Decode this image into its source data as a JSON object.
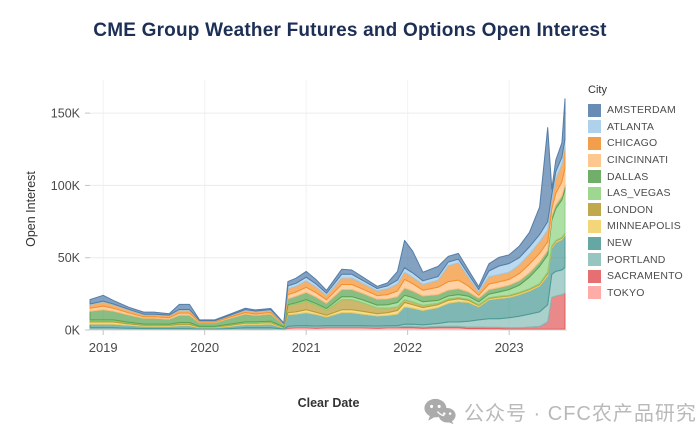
{
  "title": "CME Group Weather Futures and Options Open Interest",
  "watermark": {
    "icon": "wechat-icon",
    "text": "公众号 · CFC农产品研究"
  },
  "chart_data": {
    "type": "area",
    "stacked": true,
    "title": "CME Group Weather Futures and Options Open Interest",
    "xlabel": "Clear Date",
    "ylabel": "Open Interest",
    "legend_title": "City",
    "legend_position": "right",
    "units": "thousands of contracts (K)",
    "grid": "light horizontal and vertical gridlines",
    "stack_order": "legend order top-to-bottom equals stack top-to-bottom (AMSTERDAM on top, TOKYO at bottom)",
    "xlim": [
      2018.87,
      2023.57
    ],
    "ylim": [
      0,
      166
    ],
    "x_ticks": [
      2019,
      2020,
      2021,
      2022,
      2023
    ],
    "y_tick_values": [
      0,
      50,
      100,
      150
    ],
    "y_tick_labels": [
      "0K",
      "50K",
      "100K",
      "150K"
    ],
    "x": [
      2018.87,
      2019.0,
      2019.1,
      2019.25,
      2019.4,
      2019.5,
      2019.65,
      2019.75,
      2019.85,
      2019.95,
      2020.1,
      2020.25,
      2020.4,
      2020.5,
      2020.65,
      2020.78,
      2020.82,
      2020.9,
      2021.0,
      2021.1,
      2021.2,
      2021.35,
      2021.45,
      2021.55,
      2021.7,
      2021.8,
      2021.9,
      2021.97,
      2022.05,
      2022.15,
      2022.3,
      2022.4,
      2022.5,
      2022.6,
      2022.7,
      2022.8,
      2022.9,
      2023.0,
      2023.1,
      2023.2,
      2023.3,
      2023.38,
      2023.42,
      2023.46,
      2023.52,
      2023.55
    ],
    "series": [
      {
        "name": "AMSTERDAM",
        "color": "#4E79A7",
        "values": [
          3,
          4,
          2.5,
          1.5,
          1.5,
          1.5,
          1,
          3.5,
          3.5,
          0.5,
          0.5,
          0.8,
          1,
          0.8,
          0.8,
          0.3,
          3,
          3.5,
          4,
          3,
          2,
          3.5,
          3,
          2.5,
          1.5,
          2,
          6,
          19,
          15,
          6,
          7,
          4,
          4,
          3,
          2,
          5,
          6,
          6,
          8,
          10,
          19,
          65,
          4,
          8,
          10,
          28
        ]
      },
      {
        "name": "ATLANTA",
        "color": "#A0CBE8",
        "values": [
          0.5,
          0.5,
          0.5,
          0.4,
          0.3,
          0.3,
          0.3,
          0.5,
          0.5,
          0.2,
          0.2,
          0.3,
          0.5,
          0.5,
          0.5,
          0.2,
          2,
          2,
          2.5,
          2,
          1.5,
          2.5,
          2.5,
          2,
          1.5,
          2,
          2.5,
          3,
          3,
          2.5,
          2.5,
          2.5,
          2.5,
          2,
          1.5,
          4,
          6,
          6,
          5,
          5,
          5,
          6,
          4,
          5,
          5,
          5
        ]
      },
      {
        "name": "CHICAGO",
        "color": "#F28E2B",
        "values": [
          2.5,
          3,
          2.5,
          2,
          1.5,
          1.5,
          1.5,
          2,
          2,
          0.8,
          0.8,
          1,
          1.5,
          1.5,
          1.5,
          0.5,
          4,
          4,
          4.5,
          4,
          3,
          4.5,
          4.5,
          4,
          3.5,
          4,
          5,
          5,
          4.5,
          4,
          5,
          11,
          12,
          6,
          2.5,
          5,
          5,
          5,
          6,
          7,
          8,
          8,
          6,
          10,
          12,
          15
        ]
      },
      {
        "name": "CINCINNATI",
        "color": "#FFBE7D",
        "values": [
          2,
          2.5,
          2,
          1.5,
          1,
          1,
          1,
          1.5,
          1.5,
          0.5,
          0.5,
          0.8,
          1,
          1,
          1,
          0.3,
          3,
          3,
          3.5,
          3,
          2.5,
          3.5,
          3.5,
          3,
          2.5,
          3,
          4,
          6,
          5,
          4,
          5,
          6,
          6,
          4,
          2,
          4,
          4,
          4,
          5,
          6,
          6,
          6,
          5,
          8,
          10,
          12
        ]
      },
      {
        "name": "DALLAS",
        "color": "#59A14F",
        "values": [
          6,
          7,
          6,
          5,
          4,
          4,
          3.5,
          5,
          5,
          2.5,
          2.5,
          4,
          5.5,
          4.5,
          5,
          1.5,
          4,
          4.5,
          5,
          4.5,
          3.5,
          5,
          5,
          4.5,
          4,
          4,
          4,
          5,
          4.5,
          4,
          4,
          4,
          4,
          3,
          2.5,
          3,
          3,
          3,
          3,
          3,
          3,
          3,
          2.5,
          2.5,
          2.5,
          3
        ]
      },
      {
        "name": "LAS_VEGAS",
        "color": "#8CD17D",
        "values": [
          0.5,
          0.5,
          0.5,
          0.4,
          0.3,
          0.3,
          0.3,
          0.5,
          0.5,
          0.2,
          0.2,
          0.3,
          0.5,
          0.5,
          0.5,
          0.2,
          0.5,
          0.8,
          1,
          1,
          1.2,
          2,
          2,
          2,
          2,
          2.5,
          3,
          3,
          3,
          2.5,
          2,
          2,
          2,
          2,
          2,
          2.5,
          3,
          4,
          5,
          8,
          12,
          12,
          18,
          22,
          26,
          30
        ]
      },
      {
        "name": "LONDON",
        "color": "#B6992D",
        "values": [
          1,
          1,
          1,
          0.8,
          0.5,
          0.5,
          0.5,
          0.8,
          0.8,
          0.3,
          0.3,
          0.5,
          0.5,
          0.5,
          0.5,
          0.2,
          5,
          5.5,
          6,
          5,
          3.5,
          7,
          7,
          6,
          4,
          3,
          2.5,
          2,
          2,
          1.5,
          1,
          1,
          1,
          0.8,
          0.5,
          0.5,
          0.5,
          0.5,
          0.5,
          0.5,
          0.5,
          1,
          0.5,
          0.5,
          0.5,
          0.5
        ]
      },
      {
        "name": "MINNEAPOLIS",
        "color": "#F1CE63",
        "values": [
          1.5,
          1.5,
          1.5,
          1,
          0.8,
          0.8,
          0.8,
          1,
          1,
          0.5,
          0.5,
          0.8,
          1,
          1,
          1,
          0.3,
          1.5,
          1.5,
          2,
          1.5,
          1.2,
          2,
          2,
          2,
          1.5,
          2,
          2.5,
          3,
          2.5,
          2,
          2,
          2,
          2,
          1.5,
          1,
          1,
          1,
          1,
          1,
          1,
          1,
          1.5,
          1,
          1,
          1,
          1
        ]
      },
      {
        "name": "NEW",
        "color": "#499894",
        "values": [
          2.5,
          2.5,
          2.5,
          2,
          1.5,
          1.5,
          1.5,
          2,
          2,
          1,
          1,
          1.5,
          2,
          2,
          2.5,
          0.8,
          8,
          8,
          9,
          8,
          6,
          9,
          9,
          8,
          7,
          7,
          8,
          12,
          11,
          10,
          11,
          13,
          14,
          13,
          9,
          13,
          14,
          14,
          15,
          16,
          18,
          20,
          18,
          20,
          21,
          22
        ]
      },
      {
        "name": "PORTLAND",
        "color": "#86BCB6",
        "values": [
          1,
          1,
          1,
          0.8,
          0.6,
          0.6,
          0.5,
          0.5,
          0.5,
          0.3,
          0.3,
          0.5,
          0.8,
          0.8,
          0.8,
          0.3,
          0.8,
          1,
          1,
          1,
          1,
          1,
          1,
          1,
          1,
          1,
          1,
          1.5,
          1.5,
          1.5,
          2,
          3,
          3,
          4,
          5,
          6,
          6,
          7,
          8,
          9,
          10,
          12,
          16,
          17,
          17,
          18
        ]
      },
      {
        "name": "SACRAMENTO",
        "color": "#E15759",
        "values": [
          0.2,
          0.2,
          0.2,
          0.2,
          0.2,
          0.2,
          0.2,
          0.2,
          0.2,
          0.1,
          0.1,
          0.2,
          0.3,
          0.3,
          0.3,
          0.1,
          0.5,
          0.5,
          0.5,
          0.5,
          0.5,
          0.5,
          0.5,
          0.5,
          0.5,
          0.5,
          0.5,
          1,
          1,
          0.8,
          1,
          1,
          1,
          1,
          1,
          1,
          1,
          1,
          1,
          1.5,
          2,
          5,
          22,
          23,
          24,
          25
        ]
      },
      {
        "name": "TOKYO",
        "color": "#FF9D9A",
        "values": [
          0.3,
          0.3,
          0.3,
          0.2,
          0.2,
          0.2,
          0.2,
          0.2,
          0.2,
          0.1,
          0.1,
          0.3,
          0.5,
          0.5,
          0.5,
          0.2,
          1.2,
          1.5,
          1.5,
          1.2,
          1.5,
          1.5,
          1.5,
          1.5,
          1.2,
          1.5,
          1.5,
          1.5,
          1.5,
          1.2,
          1.5,
          1.5,
          1.5,
          1,
          1,
          0.8,
          0.8,
          0.5,
          0.5,
          0.5,
          0.5,
          0.5,
          0.5,
          0.5,
          0.5,
          0.5
        ]
      }
    ]
  }
}
